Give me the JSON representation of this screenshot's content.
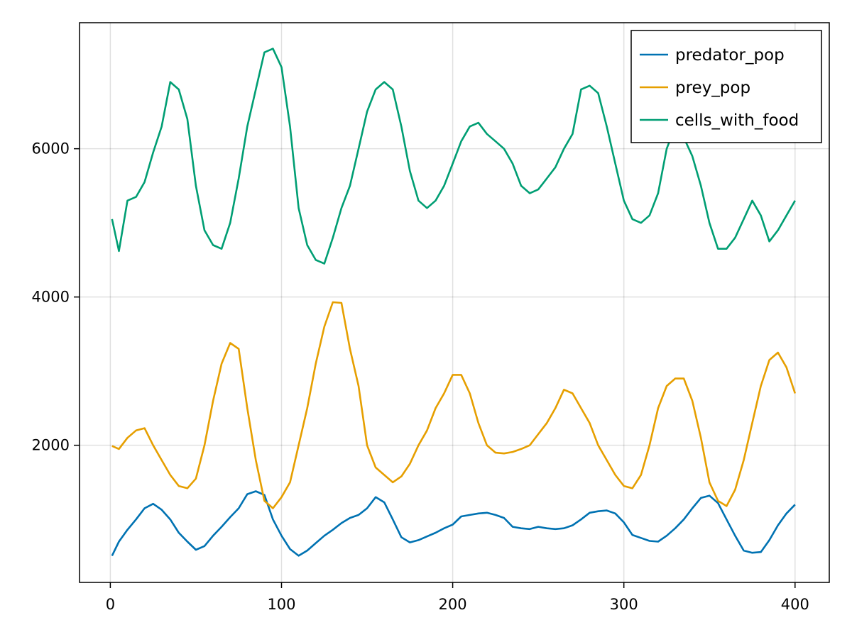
{
  "chart_data": {
    "type": "line",
    "title": "",
    "xlabel": "",
    "ylabel": "",
    "xlim": [
      -18,
      420
    ],
    "ylim": [
      150,
      7700
    ],
    "xticks": [
      0,
      100,
      200,
      300,
      400
    ],
    "yticks": [
      2000,
      4000,
      6000
    ],
    "xtick_labels": [
      "0",
      "100",
      "200",
      "300",
      "400"
    ],
    "ytick_labels": [
      "2000",
      "4000",
      "6000"
    ],
    "grid": true,
    "legend_position": "top-right",
    "x": [
      1,
      5,
      10,
      15,
      20,
      25,
      30,
      35,
      40,
      45,
      50,
      55,
      60,
      65,
      70,
      75,
      80,
      85,
      90,
      95,
      100,
      105,
      110,
      115,
      120,
      125,
      130,
      135,
      140,
      145,
      150,
      155,
      160,
      165,
      170,
      175,
      180,
      185,
      190,
      195,
      200,
      205,
      210,
      215,
      220,
      225,
      230,
      235,
      240,
      245,
      250,
      255,
      260,
      265,
      270,
      275,
      280,
      285,
      290,
      295,
      300,
      305,
      310,
      315,
      320,
      325,
      330,
      335,
      340,
      345,
      350,
      355,
      360,
      365,
      370,
      375,
      380,
      385,
      390,
      395,
      400
    ],
    "series": [
      {
        "name": "predator_pop",
        "color": "#0072b2",
        "values": [
          510,
          700,
          860,
          1000,
          1150,
          1210,
          1130,
          1000,
          820,
          700,
          590,
          640,
          780,
          900,
          1030,
          1150,
          1340,
          1380,
          1330,
          1000,
          780,
          600,
          510,
          580,
          680,
          780,
          860,
          950,
          1020,
          1060,
          1150,
          1300,
          1230,
          1000,
          760,
          690,
          720,
          770,
          820,
          880,
          930,
          1040,
          1060,
          1080,
          1090,
          1060,
          1020,
          900,
          880,
          870,
          900,
          880,
          870,
          880,
          920,
          1000,
          1090,
          1110,
          1120,
          1080,
          960,
          790,
          750,
          710,
          700,
          780,
          880,
          1000,
          1150,
          1290,
          1320,
          1220,
          1000,
          780,
          580,
          550,
          560,
          720,
          920,
          1080,
          1200
        ]
      },
      {
        "name": "prey_pop",
        "color": "#e69f00",
        "values": [
          1990,
          1950,
          2100,
          2200,
          2230,
          2000,
          1800,
          1600,
          1450,
          1420,
          1550,
          2000,
          2600,
          3100,
          3380,
          3300,
          2500,
          1800,
          1250,
          1150,
          1300,
          1500,
          2000,
          2500,
          3100,
          3600,
          3930,
          3920,
          3300,
          2800,
          2000,
          1700,
          1600,
          1500,
          1580,
          1750,
          2000,
          2200,
          2500,
          2700,
          2950,
          2950,
          2700,
          2300,
          2000,
          1900,
          1890,
          1910,
          1950,
          2000,
          2150,
          2300,
          2500,
          2750,
          2700,
          2500,
          2300,
          2000,
          1800,
          1600,
          1450,
          1420,
          1600,
          2000,
          2500,
          2800,
          2900,
          2900,
          2600,
          2100,
          1500,
          1250,
          1180,
          1400,
          1800,
          2300,
          2800,
          3150,
          3250,
          3050,
          2700
        ]
      },
      {
        "name": "cells_with_food",
        "color": "#009e73",
        "values": [
          5050,
          4620,
          5300,
          5350,
          5550,
          5950,
          6300,
          6900,
          6800,
          6400,
          5500,
          4900,
          4700,
          4650,
          5000,
          5600,
          6300,
          6800,
          7300,
          7350,
          7100,
          6300,
          5200,
          4700,
          4500,
          4450,
          4800,
          5200,
          5500,
          6000,
          6500,
          6800,
          6900,
          6800,
          6300,
          5700,
          5300,
          5200,
          5300,
          5500,
          5800,
          6100,
          6300,
          6350,
          6200,
          6100,
          6000,
          5800,
          5500,
          5400,
          5450,
          5600,
          5750,
          6000,
          6200,
          6800,
          6850,
          6750,
          6300,
          5800,
          5300,
          5050,
          5000,
          5100,
          5400,
          6000,
          6300,
          6150,
          5900,
          5500,
          5000,
          4650,
          4650,
          4800,
          5050,
          5300,
          5100,
          4750,
          4900,
          5100,
          5300
        ]
      }
    ]
  }
}
